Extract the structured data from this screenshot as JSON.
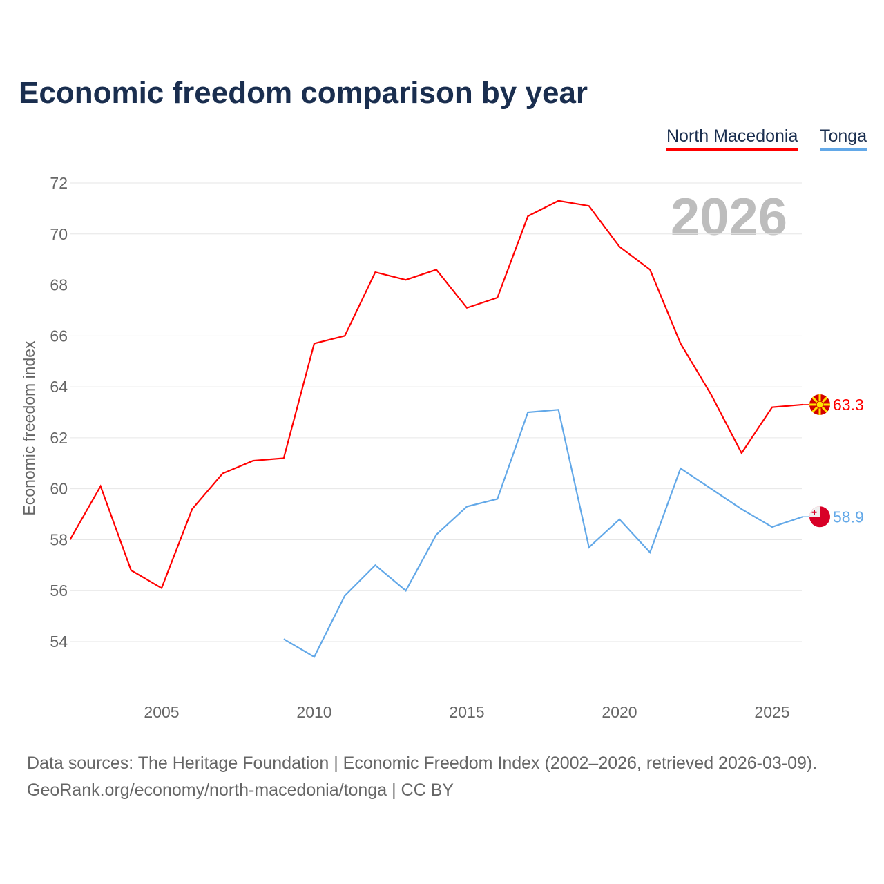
{
  "chart_data": {
    "type": "line",
    "title": "Economic freedom comparison by year",
    "ylabel": "Economic freedom index",
    "xlabel": "",
    "ylim": [
      52.1,
      72
    ],
    "xlim": [
      2002,
      2026
    ],
    "yticks": [
      54,
      56,
      58,
      60,
      62,
      64,
      66,
      68,
      70,
      72
    ],
    "xticks": [
      2005,
      2010,
      2015,
      2020,
      2025
    ],
    "grid": true,
    "legend_position": "top-right",
    "year_watermark": "2026",
    "series": [
      {
        "name": "North Macedonia",
        "color": "#ff0000",
        "end_label": "63.3",
        "x": [
          2002,
          2003,
          2004,
          2005,
          2006,
          2007,
          2008,
          2009,
          2010,
          2011,
          2012,
          2013,
          2014,
          2015,
          2016,
          2017,
          2018,
          2019,
          2020,
          2021,
          2022,
          2023,
          2024,
          2025,
          2026
        ],
        "values": [
          58.0,
          60.1,
          56.8,
          56.1,
          59.2,
          60.6,
          61.1,
          61.2,
          65.7,
          66.0,
          68.5,
          68.2,
          68.6,
          67.1,
          67.5,
          70.7,
          71.3,
          71.1,
          69.5,
          68.6,
          65.7,
          63.7,
          61.4,
          63.2,
          63.3
        ]
      },
      {
        "name": "Tonga",
        "color": "#62a8e8",
        "end_label": "58.9",
        "x": [
          2009,
          2010,
          2011,
          2012,
          2013,
          2014,
          2015,
          2016,
          2017,
          2018,
          2019,
          2020,
          2021,
          2022,
          2023,
          2024,
          2025,
          2026
        ],
        "values": [
          54.1,
          53.4,
          55.8,
          57.0,
          56.0,
          58.2,
          59.3,
          59.6,
          63.0,
          63.1,
          57.7,
          58.8,
          57.5,
          60.8,
          60.0,
          59.2,
          58.5,
          58.9
        ]
      }
    ]
  },
  "source": {
    "line1": "Data sources: The Heritage Foundation | Economic Freedom Index (2002–2026, retrieved 2026-03-09).",
    "line2": "GeoRank.org/economy/north-macedonia/tonga | CC BY"
  }
}
